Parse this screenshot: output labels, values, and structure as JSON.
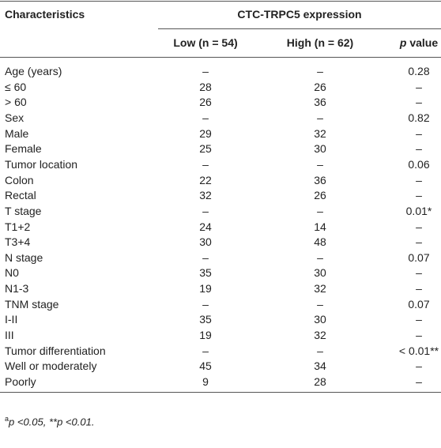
{
  "table": {
    "header": {
      "row_label": "Characteristics",
      "group": "CTC-TRPC5 expression",
      "columns": [
        "Low (n = 54)",
        "High (n = 62)"
      ],
      "p_column": [
        "p",
        "value"
      ]
    },
    "rows": [
      [
        "Age (years)",
        "–",
        "–",
        "0.28"
      ],
      [
        "≤ 60",
        "28",
        "26",
        "–"
      ],
      [
        "> 60",
        "26",
        "36",
        "–"
      ],
      [
        "Sex",
        "–",
        "–",
        "0.82"
      ],
      [
        "Male",
        "29",
        "32",
        "–"
      ],
      [
        "Female",
        "25",
        "30",
        "–"
      ],
      [
        "Tumor location",
        "–",
        "–",
        "0.06"
      ],
      [
        "Colon",
        "22",
        "36",
        "–"
      ],
      [
        "Rectal",
        "32",
        "26",
        "–"
      ],
      [
        "T stage",
        "–",
        "–",
        "0.01*"
      ],
      [
        "T1+2",
        "24",
        "14",
        "–"
      ],
      [
        "T3+4",
        "30",
        "48",
        "–"
      ],
      [
        "N stage",
        "–",
        "–",
        "0.07"
      ],
      [
        "N0",
        "35",
        "30",
        "–"
      ],
      [
        "N1-3",
        "19",
        "32",
        "–"
      ],
      [
        "TNM stage",
        "–",
        "–",
        "0.07"
      ],
      [
        "I-II",
        "35",
        "30",
        "–"
      ],
      [
        "III",
        "19",
        "32",
        "–"
      ],
      [
        "Tumor differentiation",
        "–",
        "–",
        "< 0.01**"
      ],
      [
        "Well or moderately",
        "45",
        "34",
        "–"
      ],
      [
        "Poorly",
        "9",
        "28",
        "–"
      ]
    ]
  },
  "footnote": {
    "marker": "a",
    "text": "p <0.05, **p <0.01."
  }
}
